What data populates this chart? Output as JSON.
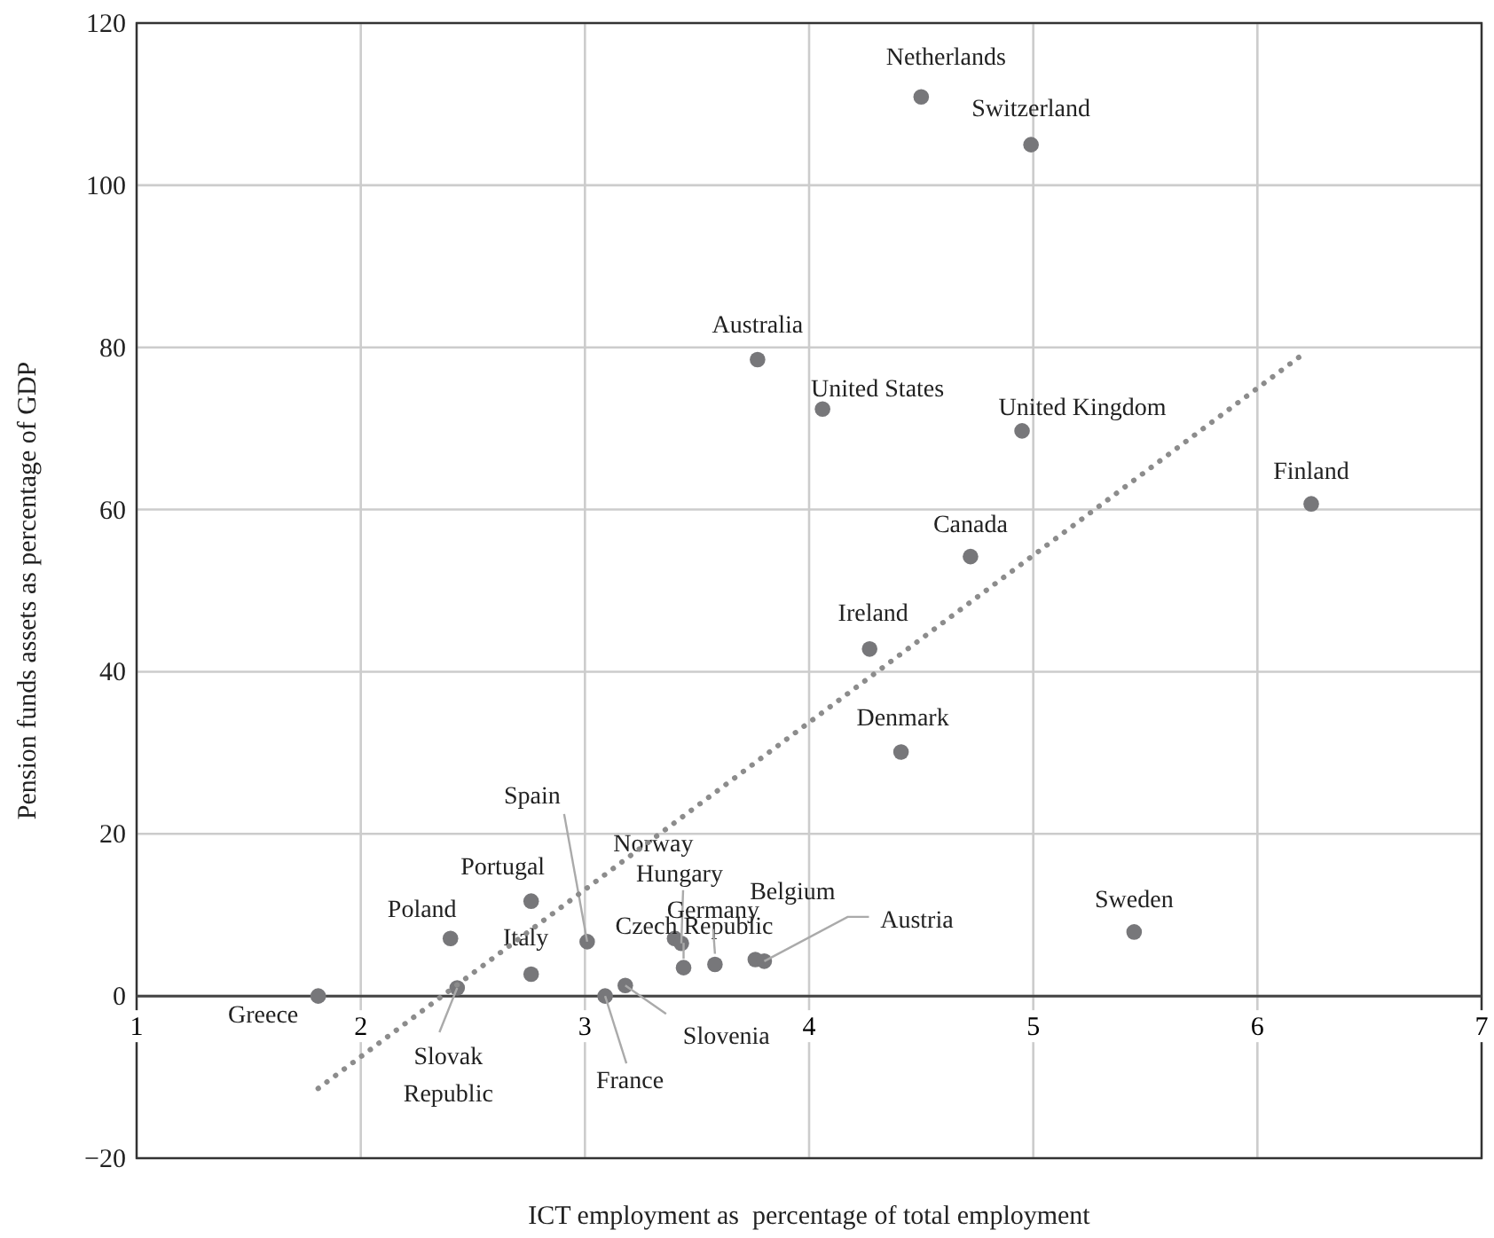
{
  "chart_data": {
    "type": "scatter",
    "xlabel": "ICT employment as  percentage of total employment",
    "ylabel": "Pension funds assets as percentage of GDP",
    "xlim": [
      1,
      7
    ],
    "ylim": [
      -20,
      120
    ],
    "xticks": [
      1,
      2,
      3,
      4,
      5,
      6,
      7
    ],
    "yticks": [
      {
        "value": -20,
        "label": "−20"
      },
      0,
      20,
      40,
      60,
      80,
      100,
      120
    ],
    "grid": true,
    "marker": "circle",
    "series": [
      {
        "name": "Netherlands",
        "color": "#77777a",
        "x": [
          4.5
        ],
        "values": [
          110.9
        ]
      },
      {
        "name": "Switzerland",
        "color": "#77777a",
        "x": [
          4.99
        ],
        "values": [
          105
        ]
      },
      {
        "name": "Australia",
        "color": "#77777a",
        "x": [
          3.77
        ],
        "values": [
          78.5
        ]
      },
      {
        "name": "United States",
        "color": "#77777a",
        "x": [
          4.06
        ],
        "values": [
          72.4
        ]
      },
      {
        "name": "United Kingdom",
        "color": "#77777a",
        "x": [
          4.95
        ],
        "values": [
          69.7
        ]
      },
      {
        "name": "Finland",
        "color": "#77777a",
        "x": [
          6.24
        ],
        "values": [
          60.7
        ]
      },
      {
        "name": "Canada",
        "color": "#77777a",
        "x": [
          4.72
        ],
        "values": [
          54.2
        ]
      },
      {
        "name": "Ireland",
        "color": "#77777a",
        "x": [
          4.27
        ],
        "values": [
          42.8
        ]
      },
      {
        "name": "Denmark",
        "color": "#77777a",
        "x": [
          4.41
        ],
        "values": [
          30.1
        ]
      },
      {
        "name": "Sweden",
        "color": "#77777a",
        "x": [
          5.45
        ],
        "values": [
          7.9
        ]
      },
      {
        "name": "Greece",
        "color": "#77777a",
        "x": [
          1.81
        ],
        "values": [
          0
        ]
      },
      {
        "name": "Slovak Republic",
        "color": "#77777a",
        "x": [
          2.43
        ],
        "values": [
          1
        ]
      },
      {
        "name": "Poland",
        "color": "#77777a",
        "x": [
          2.4
        ],
        "values": [
          7.1
        ]
      },
      {
        "name": "Portugal",
        "color": "#77777a",
        "x": [
          2.76
        ],
        "values": [
          11.7
        ]
      },
      {
        "name": "Italy",
        "color": "#77777a",
        "x": [
          2.76
        ],
        "values": [
          2.7
        ]
      },
      {
        "name": "Spain",
        "color": "#77777a",
        "x": [
          3.01
        ],
        "values": [
          6.7
        ]
      },
      {
        "name": "France",
        "color": "#77777a",
        "x": [
          3.09
        ],
        "values": [
          0
        ]
      },
      {
        "name": "Slovenia",
        "color": "#77777a",
        "x": [
          3.18
        ],
        "values": [
          1.3
        ]
      },
      {
        "name": "Norway",
        "color": "#77777a",
        "x": [
          3.4
        ],
        "values": [
          7.1
        ]
      },
      {
        "name": "Hungary",
        "color": "#77777a",
        "x": [
          3.43
        ],
        "values": [
          6.5
        ]
      },
      {
        "name": "Czech Republic",
        "color": "#77777a",
        "x": [
          3.44
        ],
        "values": [
          3.5
        ]
      },
      {
        "name": "Germany",
        "color": "#77777a",
        "x": [
          3.58
        ],
        "values": [
          3.9
        ]
      },
      {
        "name": "Belgium",
        "color": "#77777a",
        "x": [
          3.76
        ],
        "values": [
          4.5
        ]
      },
      {
        "name": "Austria",
        "color": "#77777a",
        "x": [
          3.8
        ],
        "values": [
          4.3
        ]
      },
      {
        "type": "line",
        "color": "#8c8c8c",
        "line_style": "dotted",
        "marker": "none",
        "x": [
          1.81,
          6.22
        ],
        "values": [
          -11.4,
          79.5
        ]
      }
    ]
  }
}
